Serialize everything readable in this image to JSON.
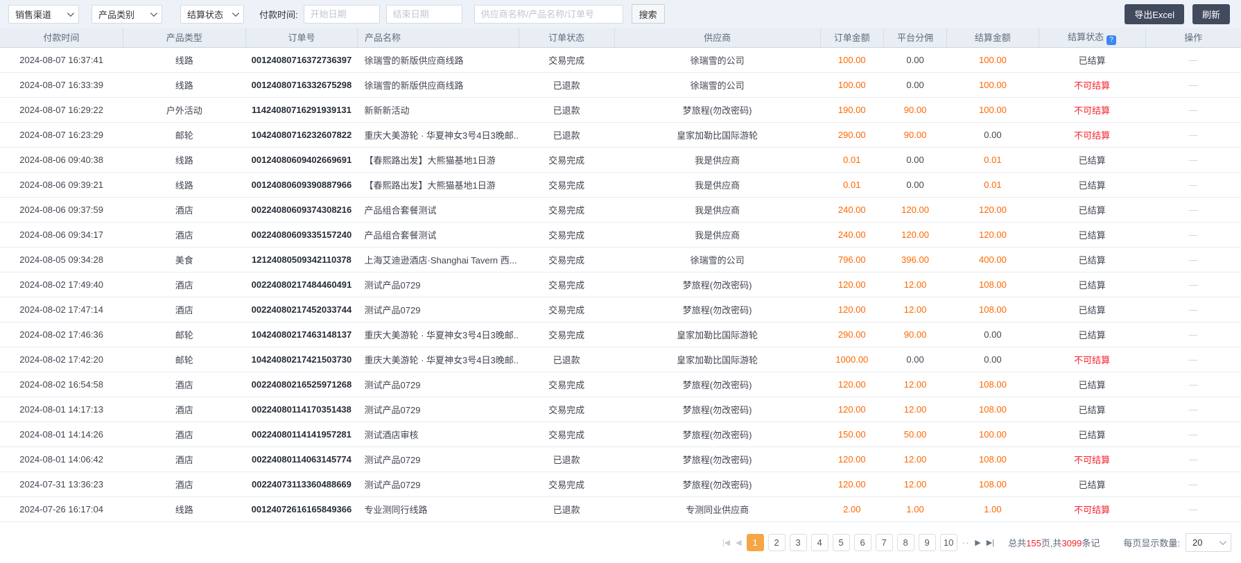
{
  "toolbar": {
    "filters": [
      {
        "label": "销售渠道"
      },
      {
        "label": "产品类别"
      },
      {
        "label": "结算状态"
      }
    ],
    "payment_time_label": "付款时间:",
    "date_start_placeholder": "开始日期",
    "date_end_placeholder": "结束日期",
    "search_placeholder": "供应商名称/产品名称/订单号",
    "search_button": "搜索",
    "export_button": "导出Excel",
    "refresh_button": "刷新"
  },
  "table": {
    "columns": [
      "付款时间",
      "产品类型",
      "订单号",
      "产品名称",
      "订单状态",
      "供应商",
      "订单金额",
      "平台分佣",
      "结算金额",
      "结算状态",
      "操作"
    ],
    "help_icon": "?",
    "rows": [
      {
        "time": "2024-08-07 16:37:41",
        "type": "线路",
        "order_no": "00124080716372736397",
        "product": "徐瑞雪的新版供应商线路",
        "order_status": "交易完成",
        "supplier": "徐瑞雪的公司",
        "amount": "100.00",
        "commission": "0.00",
        "settle": "100.00",
        "settle_status": "已结算",
        "action": "—"
      },
      {
        "time": "2024-08-07 16:33:39",
        "type": "线路",
        "order_no": "00124080716332675298",
        "product": "徐瑞雪的新版供应商线路",
        "order_status": "已退款",
        "supplier": "徐瑞雪的公司",
        "amount": "100.00",
        "commission": "0.00",
        "settle": "100.00",
        "settle_status": "不可结算",
        "action": "—"
      },
      {
        "time": "2024-08-07 16:29:22",
        "type": "户外活动",
        "order_no": "11424080716291939131",
        "product": "新新新活动",
        "order_status": "已退款",
        "supplier": "梦旅程(勿改密码)",
        "amount": "190.00",
        "commission": "90.00",
        "settle": "100.00",
        "settle_status": "不可结算",
        "action": "—"
      },
      {
        "time": "2024-08-07 16:23:29",
        "type": "邮轮",
        "order_no": "10424080716232607822",
        "product": "重庆大美游轮 · 华夏神女3号4日3晚邮...",
        "order_status": "已退款",
        "supplier": "皇家加勒比国际游轮",
        "amount": "290.00",
        "commission": "90.00",
        "settle": "0.00",
        "settle_status": "不可结算",
        "action": "—"
      },
      {
        "time": "2024-08-06 09:40:38",
        "type": "线路",
        "order_no": "00124080609402669691",
        "product": "【春熙路出发】大熊猫基地1日游",
        "order_status": "交易完成",
        "supplier": "我是供应商",
        "amount": "0.01",
        "commission": "0.00",
        "settle": "0.01",
        "settle_status": "已结算",
        "action": "—"
      },
      {
        "time": "2024-08-06 09:39:21",
        "type": "线路",
        "order_no": "00124080609390887966",
        "product": "【春熙路出发】大熊猫基地1日游",
        "order_status": "交易完成",
        "supplier": "我是供应商",
        "amount": "0.01",
        "commission": "0.00",
        "settle": "0.01",
        "settle_status": "已结算",
        "action": "—"
      },
      {
        "time": "2024-08-06 09:37:59",
        "type": "酒店",
        "order_no": "00224080609374308216",
        "product": "产品组合套餐测试",
        "order_status": "交易完成",
        "supplier": "我是供应商",
        "amount": "240.00",
        "commission": "120.00",
        "settle": "120.00",
        "settle_status": "已结算",
        "action": "—"
      },
      {
        "time": "2024-08-06 09:34:17",
        "type": "酒店",
        "order_no": "00224080609335157240",
        "product": "产品组合套餐测试",
        "order_status": "交易完成",
        "supplier": "我是供应商",
        "amount": "240.00",
        "commission": "120.00",
        "settle": "120.00",
        "settle_status": "已结算",
        "action": "—"
      },
      {
        "time": "2024-08-05 09:34:28",
        "type": "美食",
        "order_no": "12124080509342110378",
        "product": "上海艾迪逊酒店·Shanghai Tavern 西...",
        "order_status": "交易完成",
        "supplier": "徐瑞雪的公司",
        "amount": "796.00",
        "commission": "396.00",
        "settle": "400.00",
        "settle_status": "已结算",
        "action": "—"
      },
      {
        "time": "2024-08-02 17:49:40",
        "type": "酒店",
        "order_no": "00224080217484460491",
        "product": "测试产品0729",
        "order_status": "交易完成",
        "supplier": "梦旅程(勿改密码)",
        "amount": "120.00",
        "commission": "12.00",
        "settle": "108.00",
        "settle_status": "已结算",
        "action": "—"
      },
      {
        "time": "2024-08-02 17:47:14",
        "type": "酒店",
        "order_no": "00224080217452033744",
        "product": "测试产品0729",
        "order_status": "交易完成",
        "supplier": "梦旅程(勿改密码)",
        "amount": "120.00",
        "commission": "12.00",
        "settle": "108.00",
        "settle_status": "已结算",
        "action": "—"
      },
      {
        "time": "2024-08-02 17:46:36",
        "type": "邮轮",
        "order_no": "10424080217463148137",
        "product": "重庆大美游轮 · 华夏神女3号4日3晚邮...",
        "order_status": "交易完成",
        "supplier": "皇家加勒比国际游轮",
        "amount": "290.00",
        "commission": "90.00",
        "settle": "0.00",
        "settle_status": "已结算",
        "action": "—"
      },
      {
        "time": "2024-08-02 17:42:20",
        "type": "邮轮",
        "order_no": "10424080217421503730",
        "product": "重庆大美游轮 · 华夏神女3号4日3晚邮...",
        "order_status": "已退款",
        "supplier": "皇家加勒比国际游轮",
        "amount": "1000.00",
        "commission": "0.00",
        "settle": "0.00",
        "settle_status": "不可结算",
        "action": "—"
      },
      {
        "time": "2024-08-02 16:54:58",
        "type": "酒店",
        "order_no": "00224080216525971268",
        "product": "测试产品0729",
        "order_status": "交易完成",
        "supplier": "梦旅程(勿改密码)",
        "amount": "120.00",
        "commission": "12.00",
        "settle": "108.00",
        "settle_status": "已结算",
        "action": "—"
      },
      {
        "time": "2024-08-01 14:17:13",
        "type": "酒店",
        "order_no": "00224080114170351438",
        "product": "测试产品0729",
        "order_status": "交易完成",
        "supplier": "梦旅程(勿改密码)",
        "amount": "120.00",
        "commission": "12.00",
        "settle": "108.00",
        "settle_status": "已结算",
        "action": "—"
      },
      {
        "time": "2024-08-01 14:14:26",
        "type": "酒店",
        "order_no": "00224080114141957281",
        "product": "测试酒店审核",
        "order_status": "交易完成",
        "supplier": "梦旅程(勿改密码)",
        "amount": "150.00",
        "commission": "50.00",
        "settle": "100.00",
        "settle_status": "已结算",
        "action": "—"
      },
      {
        "time": "2024-08-01 14:06:42",
        "type": "酒店",
        "order_no": "00224080114063145774",
        "product": "测试产品0729",
        "order_status": "已退款",
        "supplier": "梦旅程(勿改密码)",
        "amount": "120.00",
        "commission": "12.00",
        "settle": "108.00",
        "settle_status": "不可结算",
        "action": "—"
      },
      {
        "time": "2024-07-31 13:36:23",
        "type": "酒店",
        "order_no": "00224073113360488669",
        "product": "测试产品0729",
        "order_status": "交易完成",
        "supplier": "梦旅程(勿改密码)",
        "amount": "120.00",
        "commission": "12.00",
        "settle": "108.00",
        "settle_status": "已结算",
        "action": "—"
      },
      {
        "time": "2024-07-26 16:17:04",
        "type": "线路",
        "order_no": "00124072616165849366",
        "product": "专业测同行线路",
        "order_status": "已退款",
        "supplier": "专测同业供应商",
        "amount": "2.00",
        "commission": "1.00",
        "settle": "1.00",
        "settle_status": "不可结算",
        "action": "—"
      }
    ]
  },
  "pagination": {
    "first_icon": "|◀",
    "prev_icon": "◀",
    "pages": [
      "1",
      "2",
      "3",
      "4",
      "5",
      "6",
      "7",
      "8",
      "9",
      "10"
    ],
    "active_page": "1",
    "more_icon": "··",
    "next_icon": "▶",
    "last_icon": "▶|",
    "total_prefix": "总共",
    "total_pages": "155",
    "total_mid": "页,共",
    "total_records": "3099",
    "total_suffix": "条记",
    "page_size_label": "每页显示数量:",
    "page_size": "20"
  },
  "colors": {
    "amount_orange": "#ff6600",
    "status_red": "#f5222d",
    "active_page_orange": "#f6a545",
    "dark_button": "#424a5e",
    "toolbar_bg": "#edf2f8",
    "header_bg": "#e9edf4",
    "help_icon_blue": "#3e86f5"
  }
}
